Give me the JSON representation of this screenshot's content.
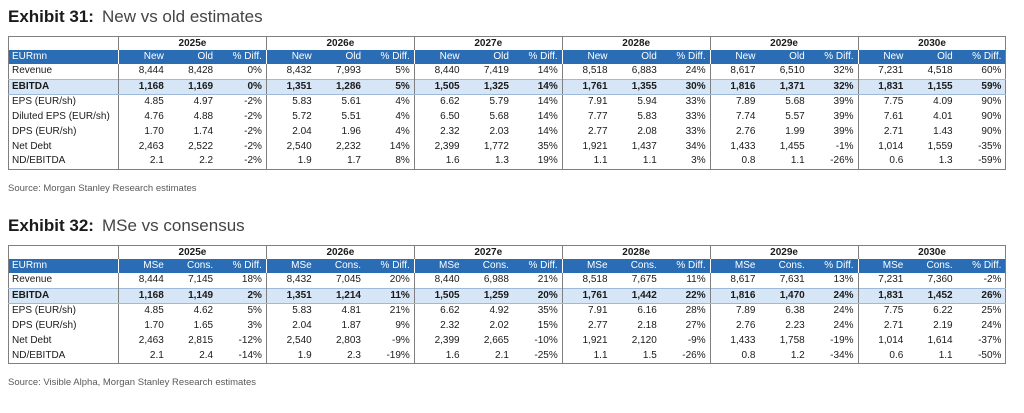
{
  "exhibits": [
    {
      "number": "Exhibit 31:",
      "title": "New vs old estimates",
      "unit_label": "EURmn",
      "years": [
        "2025e",
        "2026e",
        "2027e",
        "2028e",
        "2029e",
        "2030e"
      ],
      "subheaders": [
        "New",
        "Old",
        "% Diff."
      ],
      "rows": [
        {
          "label": "Revenue",
          "highlight": false,
          "cells": [
            "8,444",
            "8,428",
            "0%",
            "8,432",
            "7,993",
            "5%",
            "8,440",
            "7,419",
            "14%",
            "8,518",
            "6,883",
            "24%",
            "8,617",
            "6,510",
            "32%",
            "7,231",
            "4,518",
            "60%"
          ]
        },
        {
          "label": "EBITDA",
          "highlight": true,
          "cells": [
            "1,168",
            "1,169",
            "0%",
            "1,351",
            "1,286",
            "5%",
            "1,505",
            "1,325",
            "14%",
            "1,761",
            "1,355",
            "30%",
            "1,816",
            "1,371",
            "32%",
            "1,831",
            "1,155",
            "59%"
          ]
        },
        {
          "label": "EPS (EUR/sh)",
          "highlight": false,
          "cells": [
            "4.85",
            "4.97",
            "-2%",
            "5.83",
            "5.61",
            "4%",
            "6.62",
            "5.79",
            "14%",
            "7.91",
            "5.94",
            "33%",
            "7.89",
            "5.68",
            "39%",
            "7.75",
            "4.09",
            "90%"
          ]
        },
        {
          "label": "Diluted EPS (EUR/sh)",
          "highlight": false,
          "cells": [
            "4.76",
            "4.88",
            "-2%",
            "5.72",
            "5.51",
            "4%",
            "6.50",
            "5.68",
            "14%",
            "7.77",
            "5.83",
            "33%",
            "7.74",
            "5.57",
            "39%",
            "7.61",
            "4.01",
            "90%"
          ]
        },
        {
          "label": "DPS (EUR/sh)",
          "highlight": false,
          "cells": [
            "1.70",
            "1.74",
            "-2%",
            "2.04",
            "1.96",
            "4%",
            "2.32",
            "2.03",
            "14%",
            "2.77",
            "2.08",
            "33%",
            "2.76",
            "1.99",
            "39%",
            "2.71",
            "1.43",
            "90%"
          ]
        },
        {
          "label": "Net Debt",
          "highlight": false,
          "cells": [
            "2,463",
            "2,522",
            "-2%",
            "2,540",
            "2,232",
            "14%",
            "2,399",
            "1,772",
            "35%",
            "1,921",
            "1,437",
            "34%",
            "1,433",
            "1,455",
            "-1%",
            "1,014",
            "1,559",
            "-35%"
          ]
        },
        {
          "label": "ND/EBITDA",
          "highlight": false,
          "cells": [
            "2.1",
            "2.2",
            "-2%",
            "1.9",
            "1.7",
            "8%",
            "1.6",
            "1.3",
            "19%",
            "1.1",
            "1.1",
            "3%",
            "0.8",
            "1.1",
            "-26%",
            "0.6",
            "1.3",
            "-59%"
          ]
        }
      ],
      "source": "Source: Morgan Stanley Research estimates"
    },
    {
      "number": "Exhibit 32:",
      "title": "MSe vs consensus",
      "unit_label": "EURmn",
      "years": [
        "2025e",
        "2026e",
        "2027e",
        "2028e",
        "2029e",
        "2030e"
      ],
      "subheaders": [
        "MSe",
        "Cons.",
        "% Diff."
      ],
      "rows": [
        {
          "label": "Revenue",
          "highlight": false,
          "cells": [
            "8,444",
            "7,145",
            "18%",
            "8,432",
            "7,045",
            "20%",
            "8,440",
            "6,988",
            "21%",
            "8,518",
            "7,675",
            "11%",
            "8,617",
            "7,631",
            "13%",
            "7,231",
            "7,360",
            "-2%"
          ]
        },
        {
          "label": "EBITDA",
          "highlight": true,
          "cells": [
            "1,168",
            "1,149",
            "2%",
            "1,351",
            "1,214",
            "11%",
            "1,505",
            "1,259",
            "20%",
            "1,761",
            "1,442",
            "22%",
            "1,816",
            "1,470",
            "24%",
            "1,831",
            "1,452",
            "26%"
          ]
        },
        {
          "label": "EPS (EUR/sh)",
          "highlight": false,
          "cells": [
            "4.85",
            "4.62",
            "5%",
            "5.83",
            "4.81",
            "21%",
            "6.62",
            "4.92",
            "35%",
            "7.91",
            "6.16",
            "28%",
            "7.89",
            "6.38",
            "24%",
            "7.75",
            "6.22",
            "25%"
          ]
        },
        {
          "label": "DPS (EUR/sh)",
          "highlight": false,
          "cells": [
            "1.70",
            "1.65",
            "3%",
            "2.04",
            "1.87",
            "9%",
            "2.32",
            "2.02",
            "15%",
            "2.77",
            "2.18",
            "27%",
            "2.76",
            "2.23",
            "24%",
            "2.71",
            "2.19",
            "24%"
          ]
        },
        {
          "label": "Net Debt",
          "highlight": false,
          "cells": [
            "2,463",
            "2,815",
            "-12%",
            "2,540",
            "2,803",
            "-9%",
            "2,399",
            "2,665",
            "-10%",
            "1,921",
            "2,120",
            "-9%",
            "1,433",
            "1,758",
            "-19%",
            "1,014",
            "1,614",
            "-37%"
          ]
        },
        {
          "label": "ND/EBITDA",
          "highlight": false,
          "cells": [
            "2.1",
            "2.4",
            "-14%",
            "1.9",
            "2.3",
            "-19%",
            "1.6",
            "2.1",
            "-25%",
            "1.1",
            "1.5",
            "-26%",
            "0.8",
            "1.2",
            "-34%",
            "0.6",
            "1.1",
            "-50%"
          ]
        }
      ],
      "source": "Source: Visible Alpha, Morgan Stanley Research estimates"
    }
  ]
}
